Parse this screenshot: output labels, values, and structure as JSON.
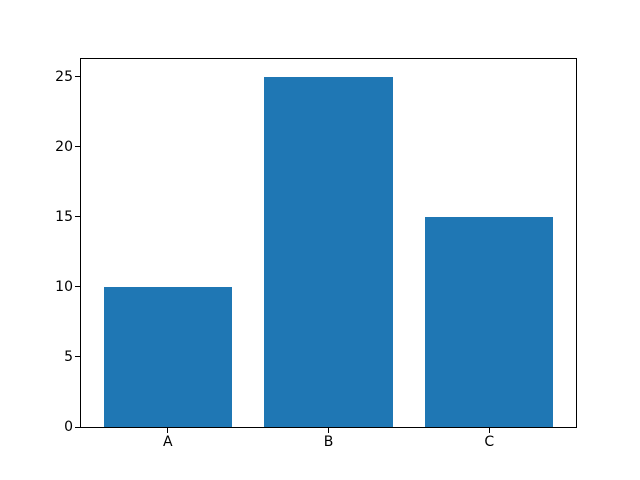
{
  "figure": {
    "background": "#ffffff"
  },
  "chart_data": {
    "type": "bar",
    "title": "",
    "subtitle": "",
    "xlabel": "",
    "ylabel": "",
    "categories": [
      "A",
      "B",
      "C"
    ],
    "values": [
      10,
      25,
      15
    ],
    "bar_color": "#1f77b4",
    "bar_width": 0.8,
    "xlim": [
      -0.54,
      2.54
    ],
    "ylim": [
      0,
      26.25
    ],
    "yticks": [
      0,
      5,
      10,
      15,
      20,
      25
    ],
    "grid": false,
    "legend": false,
    "axis_color": "#000000",
    "tick_label_color": "#000000"
  }
}
